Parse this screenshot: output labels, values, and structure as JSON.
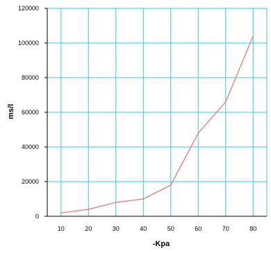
{
  "chart_data": {
    "type": "line",
    "title": "",
    "xlabel": "-Kpa",
    "ylabel": "ms/l",
    "x": [
      10,
      20,
      30,
      40,
      50,
      60,
      70,
      80
    ],
    "series": [
      {
        "values": [
          2000,
          4000,
          8000,
          10000,
          18000,
          48000,
          66000,
          104000
        ]
      }
    ],
    "xlim": [
      5,
      85
    ],
    "ylim": [
      0,
      120000
    ],
    "x_ticks": [
      "10",
      "20",
      "30",
      "40",
      "50",
      "60",
      "70",
      "80"
    ],
    "y_ticks": [
      "0",
      "20000",
      "40000",
      "60000",
      "80000",
      "100000",
      "120000"
    ],
    "grid": true,
    "legend": "none",
    "colors": {
      "line": "#e07b73",
      "grid": "#39c3ea",
      "axis": "#000000"
    }
  }
}
